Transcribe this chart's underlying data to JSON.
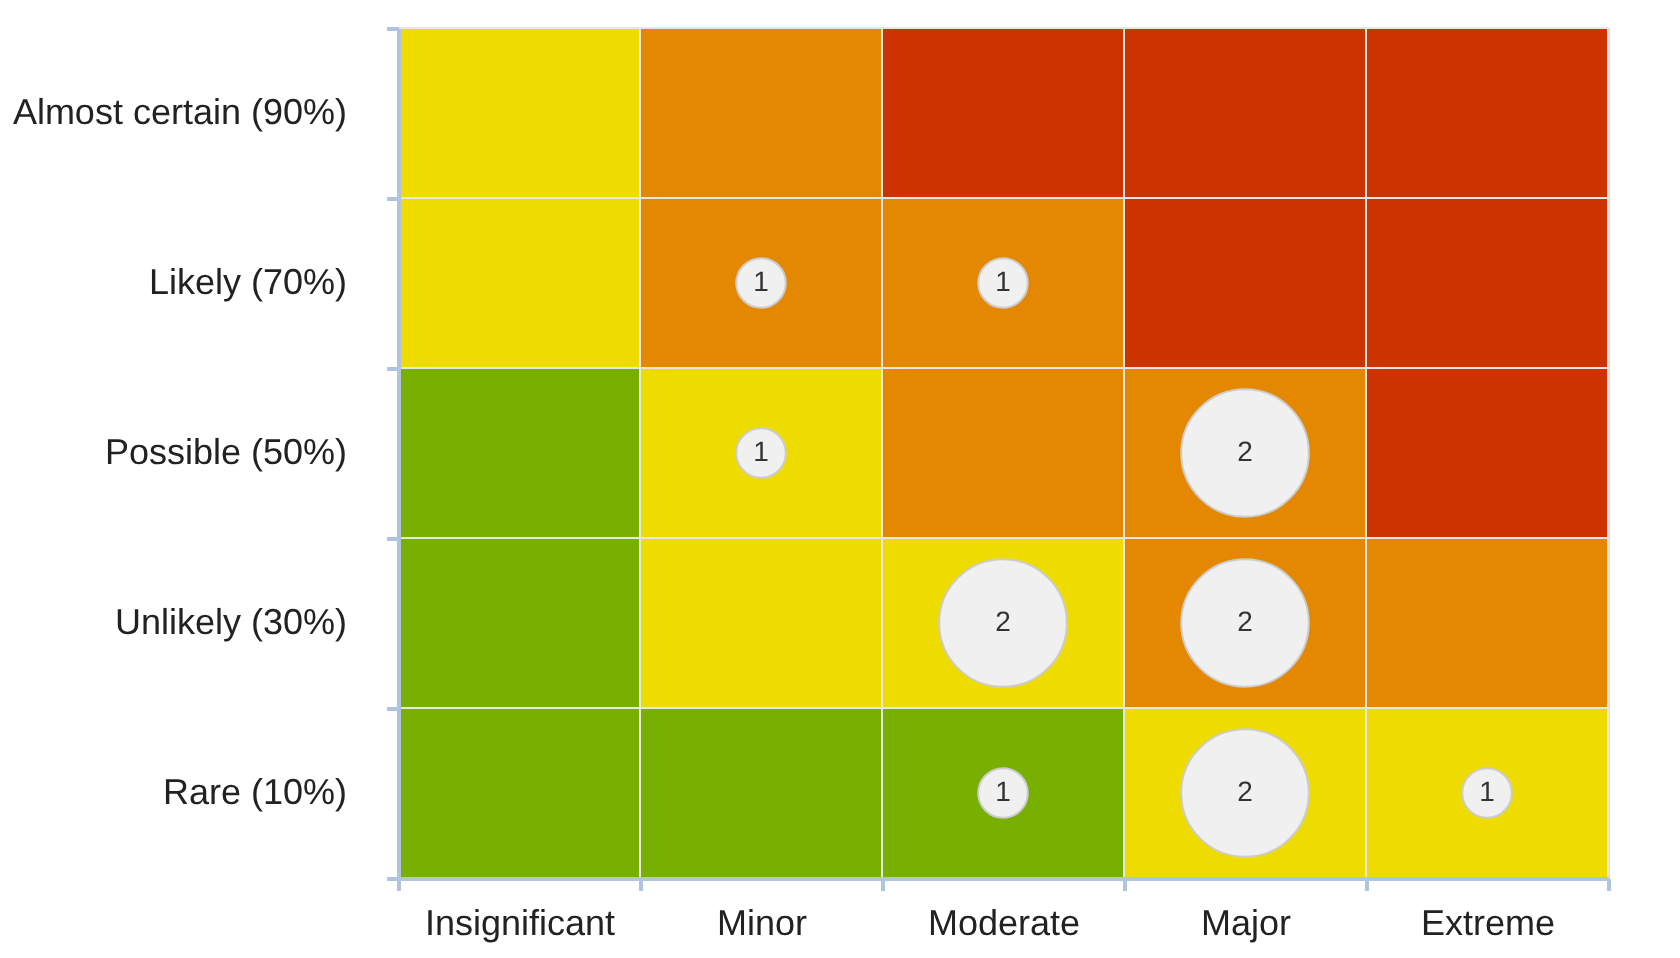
{
  "chart_data": {
    "type": "heatmap",
    "categories": [
      "Insignificant",
      "Minor",
      "Moderate",
      "Major",
      "Extreme"
    ],
    "y_categories": [
      "Almost certain (90%)",
      "Likely (70%)",
      "Possible (50%)",
      "Unlikely (30%)",
      "Rare (10%)"
    ],
    "cells": [
      [
        null,
        null,
        null,
        null,
        null
      ],
      [
        null,
        1,
        1,
        null,
        null
      ],
      [
        null,
        1,
        null,
        2,
        null
      ],
      [
        null,
        null,
        2,
        2,
        null
      ],
      [
        null,
        null,
        1,
        2,
        1
      ]
    ],
    "colors": [
      [
        "#eedc00",
        "#e38800",
        "#cc3300",
        "#cc3300",
        "#cc3300"
      ],
      [
        "#eedc00",
        "#e38800",
        "#e38800",
        "#cc3300",
        "#cc3300"
      ],
      [
        "#77b000",
        "#eedc00",
        "#e38800",
        "#e38800",
        "#cc3300"
      ],
      [
        "#77b000",
        "#eedc00",
        "#eedc00",
        "#e38800",
        "#e38800"
      ],
      [
        "#77b000",
        "#77b000",
        "#77b000",
        "#eedc00",
        "#eedc00"
      ]
    ],
    "data_labels": true,
    "legend": false,
    "grid": false
  }
}
